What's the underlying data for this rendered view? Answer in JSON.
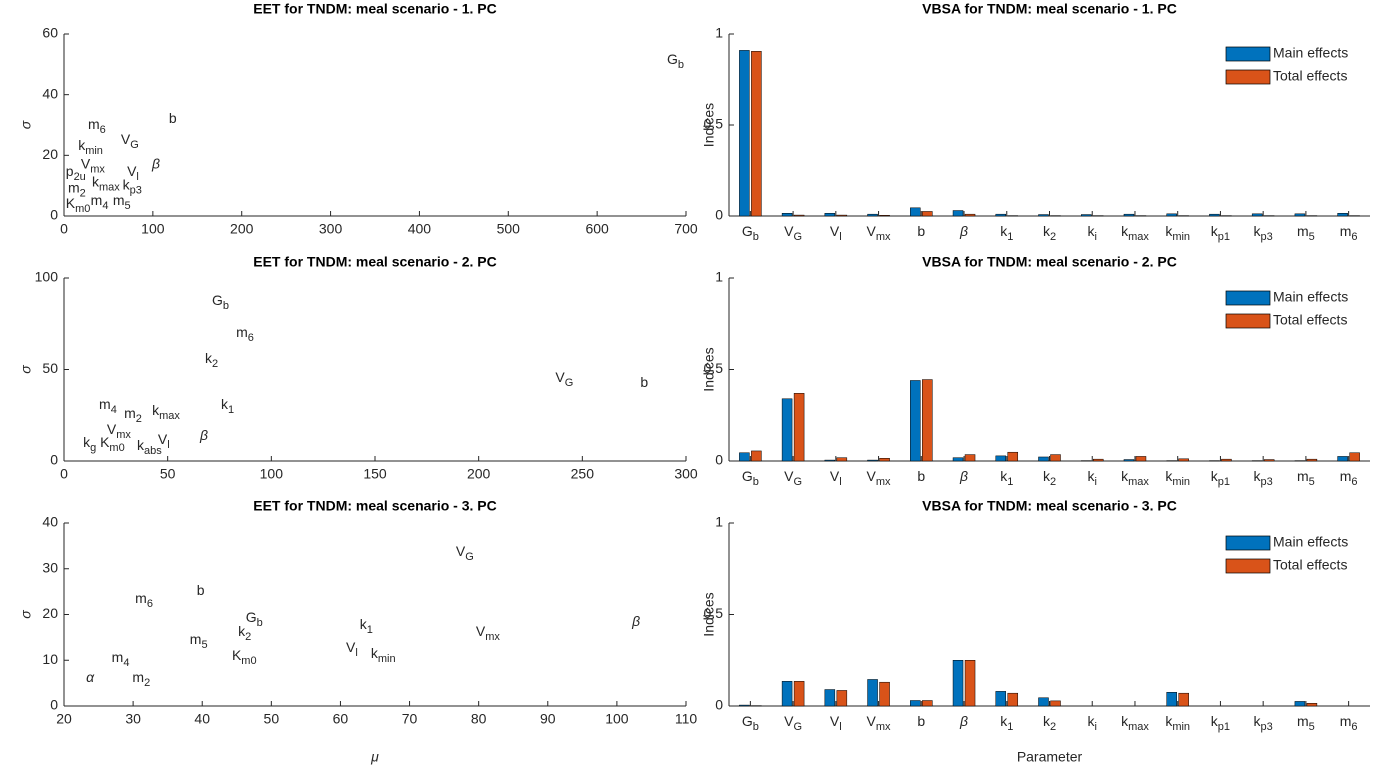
{
  "chart_data": [
    {
      "type": "scatter",
      "title": "EET for TNDM: meal scenario - 1. PC",
      "y_label": "σ",
      "xlim": [
        0,
        700
      ],
      "xticks": [
        0,
        100,
        200,
        300,
        400,
        500,
        600,
        700
      ],
      "ylim": [
        0,
        60
      ],
      "yticks": [
        0,
        20,
        40,
        60
      ],
      "points": [
        {
          "text": "G",
          "sub": "b",
          "x": 678.6,
          "y": 51.4
        },
        {
          "text": "b",
          "x": 118,
          "y": 32
        },
        {
          "text": "m",
          "sub": "6",
          "x": 27,
          "y": 30
        },
        {
          "text": "V",
          "sub": "G",
          "x": 64,
          "y": 25
        },
        {
          "text": "k",
          "sub": "min",
          "x": 16,
          "y": 23
        },
        {
          "text": "β",
          "italic": true,
          "x": 99,
          "y": 17
        },
        {
          "text": "V",
          "sub": "mx",
          "x": 19,
          "y": 17
        },
        {
          "text": "V",
          "sub": "l",
          "x": 71,
          "y": 14.5
        },
        {
          "text": "p",
          "sub": "2u",
          "x": 2,
          "y": 14.5
        },
        {
          "text": "m",
          "sub": "2",
          "x": 4.5,
          "y": 9
        },
        {
          "text": "k",
          "sub": "max",
          "x": 31.5,
          "y": 11
        },
        {
          "text": "k",
          "sub": "p3",
          "x": 66,
          "y": 10
        },
        {
          "text": "m",
          "sub": "4",
          "x": 30,
          "y": 5
        },
        {
          "text": "m",
          "sub": "5",
          "x": 55,
          "y": 5
        },
        {
          "text": "K",
          "sub": "m0",
          "x": 2,
          "y": 4
        }
      ]
    },
    {
      "type": "bar",
      "title": "VBSA for TNDM: meal scenario - 1. PC",
      "y_label": "Indices",
      "ylim": [
        0,
        1
      ],
      "yticks": [
        0,
        0.5,
        1
      ],
      "legend": "northeast",
      "categories": [
        {
          "text": "G",
          "sub": "b"
        },
        {
          "text": "V",
          "sub": "G"
        },
        {
          "text": "V",
          "sub": "l"
        },
        {
          "text": "V",
          "sub": "mx"
        },
        {
          "text": "b"
        },
        {
          "text": "β",
          "italic": true
        },
        {
          "text": "k",
          "sub": "1"
        },
        {
          "text": "k",
          "sub": "2"
        },
        {
          "text": "k",
          "sub": "i"
        },
        {
          "text": "k",
          "sub": "max"
        },
        {
          "text": "k",
          "sub": "min"
        },
        {
          "text": "k",
          "sub": "p1"
        },
        {
          "text": "k",
          "sub": "p3"
        },
        {
          "text": "m",
          "sub": "5"
        },
        {
          "text": "m",
          "sub": "6"
        }
      ],
      "series": [
        {
          "name": "Main effects",
          "color": "#0072bd",
          "values": [
            0.91,
            0.015,
            0.015,
            0.01,
            0.045,
            0.03,
            0.01,
            0.008,
            0.008,
            0.01,
            0.012,
            0.01,
            0.012,
            0.012,
            0.015
          ]
        },
        {
          "name": "Total effects",
          "color": "#d95319",
          "values": [
            0.905,
            0.005,
            0.005,
            0.004,
            0.025,
            0.01,
            0.002,
            0.002,
            0.002,
            0.002,
            0.002,
            0.002,
            0.002,
            0.002,
            0.002
          ]
        }
      ]
    },
    {
      "type": "scatter",
      "title": "EET for TNDM: meal scenario - 2. PC",
      "y_label": "σ",
      "xlim": [
        0,
        300
      ],
      "xticks": [
        0,
        50,
        100,
        150,
        200,
        250,
        300
      ],
      "ylim": [
        0,
        100
      ],
      "yticks": [
        0,
        50,
        100
      ],
      "points": [
        {
          "text": "G",
          "sub": "b",
          "x": 71.4,
          "y": 87.4
        },
        {
          "text": "m",
          "sub": "6",
          "x": 83,
          "y": 70
        },
        {
          "text": "k",
          "sub": "2",
          "x": 68,
          "y": 55.7
        },
        {
          "text": "V",
          "sub": "G",
          "x": 237,
          "y": 45.4
        },
        {
          "text": "b",
          "x": 278,
          "y": 42.6
        },
        {
          "text": "m",
          "sub": "4",
          "x": 16.9,
          "y": 30.6
        },
        {
          "text": "k",
          "sub": "1",
          "x": 75.7,
          "y": 30.6
        },
        {
          "text": "m",
          "sub": "2",
          "x": 29,
          "y": 25.7
        },
        {
          "text": "k",
          "sub": "max",
          "x": 42.5,
          "y": 27.3
        },
        {
          "text": "V",
          "sub": "mx",
          "x": 20.7,
          "y": 17
        },
        {
          "text": "β",
          "italic": true,
          "x": 65.6,
          "y": 13.7
        },
        {
          "text": "V",
          "sub": "l",
          "x": 45.3,
          "y": 11.5
        },
        {
          "text": "k",
          "sub": "g",
          "x": 9.2,
          "y": 9.8
        },
        {
          "text": "K",
          "sub": "m0",
          "x": 17.4,
          "y": 9.8
        },
        {
          "text": "k",
          "sub": "abs",
          "x": 35.2,
          "y": 8.2
        }
      ]
    },
    {
      "type": "bar",
      "title": "VBSA for TNDM: meal scenario - 2. PC",
      "y_label": "Indices",
      "ylim": [
        0,
        1
      ],
      "yticks": [
        0,
        0.5,
        1
      ],
      "legend": "northeast",
      "categories": [
        {
          "text": "G",
          "sub": "b"
        },
        {
          "text": "V",
          "sub": "G"
        },
        {
          "text": "V",
          "sub": "l"
        },
        {
          "text": "V",
          "sub": "mx"
        },
        {
          "text": "b"
        },
        {
          "text": "β",
          "italic": true
        },
        {
          "text": "k",
          "sub": "1"
        },
        {
          "text": "k",
          "sub": "2"
        },
        {
          "text": "k",
          "sub": "i"
        },
        {
          "text": "k",
          "sub": "max"
        },
        {
          "text": "k",
          "sub": "min"
        },
        {
          "text": "k",
          "sub": "p1"
        },
        {
          "text": "k",
          "sub": "p3"
        },
        {
          "text": "m",
          "sub": "5"
        },
        {
          "text": "m",
          "sub": "6"
        }
      ],
      "series": [
        {
          "name": "Main effects",
          "color": "#0072bd",
          "values": [
            0.045,
            0.34,
            0.005,
            0.005,
            0.44,
            0.018,
            0.028,
            0.022,
            0.002,
            0.008,
            0.002,
            0.002,
            0.002,
            0.002,
            0.025
          ]
        },
        {
          "name": "Total effects",
          "color": "#d95319",
          "values": [
            0.055,
            0.37,
            0.018,
            0.015,
            0.445,
            0.035,
            0.048,
            0.035,
            0.01,
            0.025,
            0.012,
            0.01,
            0.008,
            0.01,
            0.045
          ]
        }
      ]
    },
    {
      "type": "scatter",
      "title": "EET for TNDM: meal scenario - 3. PC",
      "x_label": "μ",
      "y_label": "σ",
      "xlim": [
        20,
        110
      ],
      "xticks": [
        20,
        30,
        40,
        50,
        60,
        70,
        80,
        90,
        100,
        110
      ],
      "ylim": [
        0,
        40
      ],
      "yticks": [
        0,
        10,
        20,
        30,
        40
      ],
      "points": [
        {
          "text": "V",
          "sub": "G",
          "x": 76.7,
          "y": 33.7
        },
        {
          "text": "m",
          "sub": "6",
          "x": 30.3,
          "y": 23.4
        },
        {
          "text": "b",
          "x": 39.2,
          "y": 25.1
        },
        {
          "text": "G",
          "sub": "b",
          "x": 46.3,
          "y": 19.2
        },
        {
          "text": "β",
          "italic": true,
          "x": 102.2,
          "y": 18.4
        },
        {
          "text": "k",
          "sub": "1",
          "x": 62.8,
          "y": 17.7
        },
        {
          "text": "k",
          "sub": "2",
          "x": 45.2,
          "y": 16.2
        },
        {
          "text": "V",
          "sub": "mx",
          "x": 79.6,
          "y": 16.2
        },
        {
          "text": "m",
          "sub": "5",
          "x": 38.2,
          "y": 14.4
        },
        {
          "text": "V",
          "sub": "l",
          "x": 60.8,
          "y": 12.7
        },
        {
          "text": "k",
          "sub": "min",
          "x": 64.4,
          "y": 11.4
        },
        {
          "text": "K",
          "sub": "m0",
          "x": 44.3,
          "y": 10.9
        },
        {
          "text": "m",
          "sub": "4",
          "x": 26.9,
          "y": 10.5
        },
        {
          "text": "α",
          "italic": true,
          "x": 23.2,
          "y": 6.1
        },
        {
          "text": "m",
          "sub": "2",
          "x": 29.9,
          "y": 6.1
        }
      ]
    },
    {
      "type": "bar",
      "title": "VBSA for TNDM: meal scenario - 3. PC",
      "x_label": "Parameter",
      "y_label": "Indices",
      "ylim": [
        0,
        1
      ],
      "yticks": [
        0,
        0.5,
        1
      ],
      "legend": "northeast",
      "categories": [
        {
          "text": "G",
          "sub": "b"
        },
        {
          "text": "V",
          "sub": "G"
        },
        {
          "text": "V",
          "sub": "l"
        },
        {
          "text": "V",
          "sub": "mx"
        },
        {
          "text": "b"
        },
        {
          "text": "β",
          "italic": true
        },
        {
          "text": "k",
          "sub": "1"
        },
        {
          "text": "k",
          "sub": "2"
        },
        {
          "text": "k",
          "sub": "i"
        },
        {
          "text": "k",
          "sub": "max"
        },
        {
          "text": "k",
          "sub": "min"
        },
        {
          "text": "k",
          "sub": "p1"
        },
        {
          "text": "k",
          "sub": "p3"
        },
        {
          "text": "m",
          "sub": "5"
        },
        {
          "text": "m",
          "sub": "6"
        }
      ],
      "series": [
        {
          "name": "Main effects",
          "color": "#0072bd",
          "values": [
            0.005,
            0.135,
            0.09,
            0.145,
            0.03,
            0.25,
            0.08,
            0.045,
            0,
            0,
            0.075,
            0,
            0,
            0.025,
            0
          ]
        },
        {
          "name": "Total effects",
          "color": "#d95319",
          "values": [
            0.002,
            0.135,
            0.085,
            0.13,
            0.03,
            0.25,
            0.07,
            0.028,
            0,
            0,
            0.07,
            0,
            0,
            0.015,
            0
          ]
        }
      ]
    }
  ]
}
